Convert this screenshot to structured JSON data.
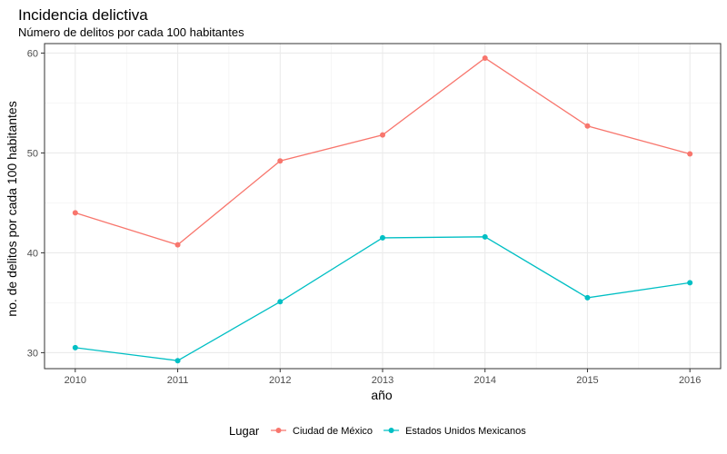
{
  "chart_data": {
    "type": "line",
    "title": "Incidencia delictiva",
    "subtitle": "Número de delitos por cada 100 habitantes",
    "xlabel": "año",
    "ylabel": "no. de delitos por cada 100 habitantes",
    "x": [
      2010,
      2011,
      2012,
      2013,
      2014,
      2015,
      2016
    ],
    "xlim": [
      2009.7,
      2016.3
    ],
    "ylim": [
      28.4,
      60.95
    ],
    "yticks": [
      30,
      40,
      50,
      60
    ],
    "series": [
      {
        "name": "Ciudad de México",
        "color": "#F8766D",
        "values": [
          44.0,
          40.8,
          49.2,
          51.8,
          59.5,
          52.7,
          49.9
        ]
      },
      {
        "name": "Estados Unidos Mexicanos",
        "color": "#00BFC4",
        "values": [
          30.5,
          29.2,
          35.1,
          41.5,
          41.6,
          35.5,
          37.0
        ]
      }
    ],
    "grid": true,
    "legend": {
      "title": "Lugar",
      "position": "bottom"
    }
  }
}
